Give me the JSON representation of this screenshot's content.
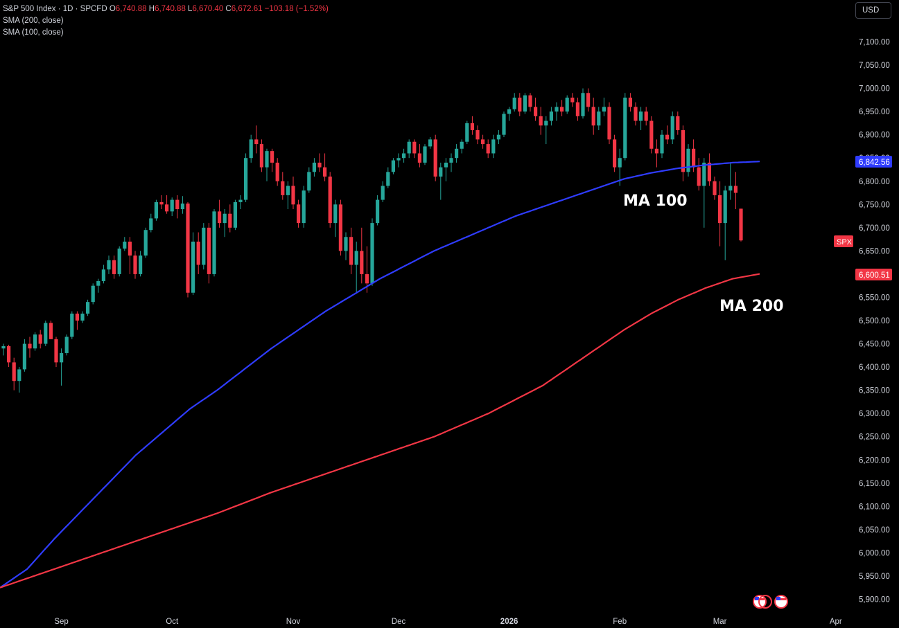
{
  "legend": {
    "symbol": "S&P 500 Index · 1D · SPCFD",
    "o_label": "O",
    "o_value": "6,740.88",
    "h_label": "H",
    "h_value": "6,740.88",
    "l_label": "L",
    "l_value": "6,670.40",
    "c_label": "C",
    "c_value": "6,672.61",
    "change": "−103.18 (−1.52%)",
    "sma200": "SMA (200, close)",
    "sma100": "SMA (100, close)"
  },
  "currency_button": "USD",
  "price_labels": {
    "ma100_value": "6,842.56",
    "ma200_value": "6,600.51",
    "symbol_tag": "SPX"
  },
  "annotations": {
    "ma100": "MA 100",
    "ma200": "MA 200"
  },
  "colors": {
    "up": "#26a69a",
    "down": "#f23645",
    "ma100": "#2f3cff",
    "ma200": "#f23645",
    "background": "#000000"
  },
  "chart_data": {
    "type": "candlestick",
    "y_axis": {
      "ticks": [
        5900,
        5950,
        6000,
        6050,
        6100,
        6150,
        6200,
        6250,
        6300,
        6350,
        6400,
        6450,
        6500,
        6550,
        6600,
        6650,
        6700,
        6750,
        6800,
        6850,
        6900,
        6950,
        7000,
        7050,
        7100
      ],
      "tick_labels": [
        "5,900.00",
        "5,950.00",
        "6,000.00",
        "6,050.00",
        "6,100.00",
        "6,150.00",
        "6,200.00",
        "6,250.00",
        "6,300.00",
        "6,350.00",
        "6,400.00",
        "6,450.00",
        "6,500.00",
        "6,550.00",
        "6,600.00",
        "6,650.00",
        "6,700.00",
        "6,750.00",
        "6,800.00",
        "6,850.00",
        "6,900.00",
        "6,950.00",
        "7,000.00",
        "7,050.00",
        "7,100.00"
      ],
      "range": [
        5880,
        7130
      ]
    },
    "x_axis": {
      "labels": [
        {
          "text": "Sep",
          "index": 11,
          "bold": false
        },
        {
          "text": "Oct",
          "index": 32,
          "bold": false
        },
        {
          "text": "Nov",
          "index": 55,
          "bold": false
        },
        {
          "text": "Dec",
          "index": 75,
          "bold": false
        },
        {
          "text": "2026",
          "index": 96,
          "bold": true
        },
        {
          "text": "Feb",
          "index": 117,
          "bold": false
        },
        {
          "text": "Mar",
          "index": 136,
          "bold": false
        },
        {
          "text": "Apr",
          "index": 158,
          "bold": false
        }
      ],
      "bar_count_visible": 166
    },
    "series": [
      {
        "name": "SMA (100, close)",
        "values": [
          [
            0,
            5925
          ],
          [
            5,
            5965
          ],
          [
            10,
            6030
          ],
          [
            15,
            6090
          ],
          [
            20,
            6150
          ],
          [
            25,
            6210
          ],
          [
            30,
            6260
          ],
          [
            35,
            6310
          ],
          [
            40,
            6350
          ],
          [
            45,
            6395
          ],
          [
            50,
            6440
          ],
          [
            55,
            6480
          ],
          [
            60,
            6520
          ],
          [
            65,
            6555
          ],
          [
            70,
            6590
          ],
          [
            75,
            6620
          ],
          [
            80,
            6650
          ],
          [
            85,
            6675
          ],
          [
            90,
            6700
          ],
          [
            95,
            6725
          ],
          [
            100,
            6745
          ],
          [
            105,
            6765
          ],
          [
            110,
            6785
          ],
          [
            115,
            6805
          ],
          [
            120,
            6818
          ],
          [
            125,
            6828
          ],
          [
            130,
            6835
          ],
          [
            135,
            6840
          ],
          [
            140,
            6842.56
          ]
        ]
      },
      {
        "name": "SMA (200, close)",
        "values": [
          [
            0,
            5925
          ],
          [
            10,
            5965
          ],
          [
            20,
            6005
          ],
          [
            30,
            6045
          ],
          [
            40,
            6085
          ],
          [
            50,
            6130
          ],
          [
            60,
            6170
          ],
          [
            70,
            6210
          ],
          [
            80,
            6250
          ],
          [
            90,
            6300
          ],
          [
            100,
            6360
          ],
          [
            105,
            6400
          ],
          [
            110,
            6440
          ],
          [
            115,
            6480
          ],
          [
            120,
            6515
          ],
          [
            125,
            6545
          ],
          [
            130,
            6570
          ],
          [
            135,
            6590
          ],
          [
            140,
            6600.51
          ]
        ]
      }
    ],
    "candles": [
      [
        6440,
        6450,
        6425,
        6445
      ],
      [
        6445,
        6448,
        6400,
        6410
      ],
      [
        6410,
        6420,
        6350,
        6370
      ],
      [
        6370,
        6400,
        6345,
        6395
      ],
      [
        6395,
        6460,
        6390,
        6450
      ],
      [
        6450,
        6465,
        6420,
        6440
      ],
      [
        6440,
        6475,
        6435,
        6470
      ],
      [
        6470,
        6480,
        6440,
        6450
      ],
      [
        6450,
        6500,
        6445,
        6495
      ],
      [
        6495,
        6500,
        6460,
        6460
      ],
      [
        6460,
        6465,
        6400,
        6410
      ],
      [
        6410,
        6440,
        6360,
        6430
      ],
      [
        6430,
        6470,
        6425,
        6465
      ],
      [
        6465,
        6520,
        6460,
        6515
      ],
      [
        6515,
        6520,
        6480,
        6500
      ],
      [
        6500,
        6520,
        6495,
        6515
      ],
      [
        6515,
        6545,
        6510,
        6540
      ],
      [
        6540,
        6580,
        6535,
        6575
      ],
      [
        6575,
        6590,
        6560,
        6585
      ],
      [
        6585,
        6620,
        6580,
        6610
      ],
      [
        6610,
        6640,
        6600,
        6630
      ],
      [
        6630,
        6640,
        6590,
        6600
      ],
      [
        6600,
        6660,
        6595,
        6655
      ],
      [
        6655,
        6680,
        6650,
        6670
      ],
      [
        6670,
        6680,
        6600,
        6640
      ],
      [
        6640,
        6650,
        6590,
        6600
      ],
      [
        6600,
        6650,
        6595,
        6640
      ],
      [
        6640,
        6700,
        6635,
        6695
      ],
      [
        6695,
        6730,
        6690,
        6720
      ],
      [
        6720,
        6760,
        6715,
        6755
      ],
      [
        6755,
        6770,
        6740,
        6750
      ],
      [
        6750,
        6770,
        6730,
        6735
      ],
      [
        6735,
        6765,
        6725,
        6760
      ],
      [
        6760,
        6770,
        6720,
        6740
      ],
      [
        6740,
        6768,
        6730,
        6752
      ],
      [
        6752,
        6755,
        6550,
        6560
      ],
      [
        6560,
        6690,
        6555,
        6670
      ],
      [
        6670,
        6690,
        6600,
        6620
      ],
      [
        6620,
        6710,
        6610,
        6700
      ],
      [
        6700,
        6710,
        6580,
        6600
      ],
      [
        6600,
        6740,
        6595,
        6735
      ],
      [
        6735,
        6760,
        6700,
        6710
      ],
      [
        6710,
        6740,
        6680,
        6730
      ],
      [
        6730,
        6750,
        6690,
        6700
      ],
      [
        6700,
        6760,
        6695,
        6755
      ],
      [
        6755,
        6770,
        6740,
        6760
      ],
      [
        6760,
        6860,
        6755,
        6850
      ],
      [
        6850,
        6900,
        6840,
        6890
      ],
      [
        6890,
        6920,
        6860,
        6880
      ],
      [
        6880,
        6890,
        6820,
        6830
      ],
      [
        6830,
        6870,
        6800,
        6865
      ],
      [
        6865,
        6870,
        6820,
        6840
      ],
      [
        6840,
        6850,
        6790,
        6800
      ],
      [
        6800,
        6820,
        6760,
        6770
      ],
      [
        6770,
        6800,
        6740,
        6790
      ],
      [
        6790,
        6810,
        6740,
        6750
      ],
      [
        6750,
        6760,
        6700,
        6710
      ],
      [
        6710,
        6790,
        6700,
        6780
      ],
      [
        6780,
        6830,
        6775,
        6820
      ],
      [
        6820,
        6850,
        6810,
        6840
      ],
      [
        6840,
        6860,
        6820,
        6830
      ],
      [
        6830,
        6860,
        6800,
        6810
      ],
      [
        6810,
        6820,
        6700,
        6710
      ],
      [
        6710,
        6760,
        6680,
        6750
      ],
      [
        6750,
        6760,
        6640,
        6650
      ],
      [
        6650,
        6690,
        6630,
        6680
      ],
      [
        6680,
        6700,
        6600,
        6620
      ],
      [
        6620,
        6670,
        6560,
        6650
      ],
      [
        6650,
        6700,
        6580,
        6600
      ],
      [
        6600,
        6660,
        6560,
        6580
      ],
      [
        6580,
        6720,
        6575,
        6710
      ],
      [
        6710,
        6770,
        6705,
        6760
      ],
      [
        6760,
        6800,
        6755,
        6790
      ],
      [
        6790,
        6830,
        6785,
        6820
      ],
      [
        6820,
        6850,
        6815,
        6845
      ],
      [
        6845,
        6860,
        6830,
        6850
      ],
      [
        6850,
        6870,
        6840,
        6860
      ],
      [
        6860,
        6890,
        6850,
        6885
      ],
      [
        6885,
        6890,
        6850,
        6860
      ],
      [
        6860,
        6880,
        6830,
        6840
      ],
      [
        6840,
        6880,
        6835,
        6875
      ],
      [
        6875,
        6895,
        6870,
        6890
      ],
      [
        6890,
        6900,
        6800,
        6810
      ],
      [
        6810,
        6840,
        6760,
        6830
      ],
      [
        6830,
        6850,
        6800,
        6840
      ],
      [
        6840,
        6860,
        6820,
        6850
      ],
      [
        6850,
        6880,
        6840,
        6870
      ],
      [
        6870,
        6890,
        6860,
        6885
      ],
      [
        6885,
        6930,
        6880,
        6925
      ],
      [
        6925,
        6940,
        6900,
        6910
      ],
      [
        6910,
        6920,
        6880,
        6890
      ],
      [
        6890,
        6900,
        6870,
        6880
      ],
      [
        6880,
        6890,
        6850,
        6860
      ],
      [
        6860,
        6900,
        6850,
        6890
      ],
      [
        6890,
        6910,
        6880,
        6900
      ],
      [
        6900,
        6950,
        6895,
        6945
      ],
      [
        6945,
        6960,
        6930,
        6955
      ],
      [
        6955,
        6990,
        6950,
        6980
      ],
      [
        6980,
        6990,
        6940,
        6950
      ],
      [
        6950,
        6990,
        6945,
        6985
      ],
      [
        6985,
        6990,
        6950,
        6960
      ],
      [
        6960,
        6980,
        6930,
        6940
      ],
      [
        6940,
        6960,
        6900,
        6920
      ],
      [
        6920,
        6940,
        6880,
        6930
      ],
      [
        6930,
        6960,
        6920,
        6950
      ],
      [
        6950,
        6970,
        6930,
        6960
      ],
      [
        6960,
        6975,
        6940,
        6950
      ],
      [
        6950,
        6985,
        6945,
        6980
      ],
      [
        6980,
        6990,
        6960,
        6970
      ],
      [
        6970,
        6980,
        6930,
        6940
      ],
      [
        6940,
        7000,
        6935,
        6990
      ],
      [
        6990,
        7000,
        6950,
        6960
      ],
      [
        6960,
        6980,
        6900,
        6920
      ],
      [
        6920,
        6960,
        6910,
        6950
      ],
      [
        6950,
        6980,
        6940,
        6960
      ],
      [
        6960,
        6970,
        6880,
        6890
      ],
      [
        6890,
        6900,
        6820,
        6830
      ],
      [
        6830,
        6870,
        6790,
        6850
      ],
      [
        6850,
        6990,
        6845,
        6980
      ],
      [
        6980,
        6990,
        6950,
        6960
      ],
      [
        6960,
        6970,
        6920,
        6930
      ],
      [
        6930,
        6960,
        6910,
        6950
      ],
      [
        6950,
        6960,
        6920,
        6930
      ],
      [
        6930,
        6940,
        6860,
        6870
      ],
      [
        6870,
        6890,
        6830,
        6860
      ],
      [
        6860,
        6910,
        6850,
        6900
      ],
      [
        6900,
        6920,
        6880,
        6890
      ],
      [
        6890,
        6950,
        6880,
        6940
      ],
      [
        6940,
        6950,
        6900,
        6910
      ],
      [
        6910,
        6920,
        6800,
        6820
      ],
      [
        6820,
        6880,
        6810,
        6870
      ],
      [
        6870,
        6890,
        6820,
        6830
      ],
      [
        6830,
        6850,
        6780,
        6790
      ],
      [
        6790,
        6850,
        6700,
        6840
      ],
      [
        6840,
        6860,
        6790,
        6800
      ],
      [
        6800,
        6810,
        6760,
        6770
      ],
      [
        6770,
        6800,
        6660,
        6710
      ],
      [
        6710,
        6790,
        6630,
        6780
      ],
      [
        6780,
        6840,
        6760,
        6790
      ],
      [
        6790,
        6820,
        6740,
        6775
      ],
      [
        6740.88,
        6740.88,
        6670.4,
        6672.61
      ]
    ]
  }
}
